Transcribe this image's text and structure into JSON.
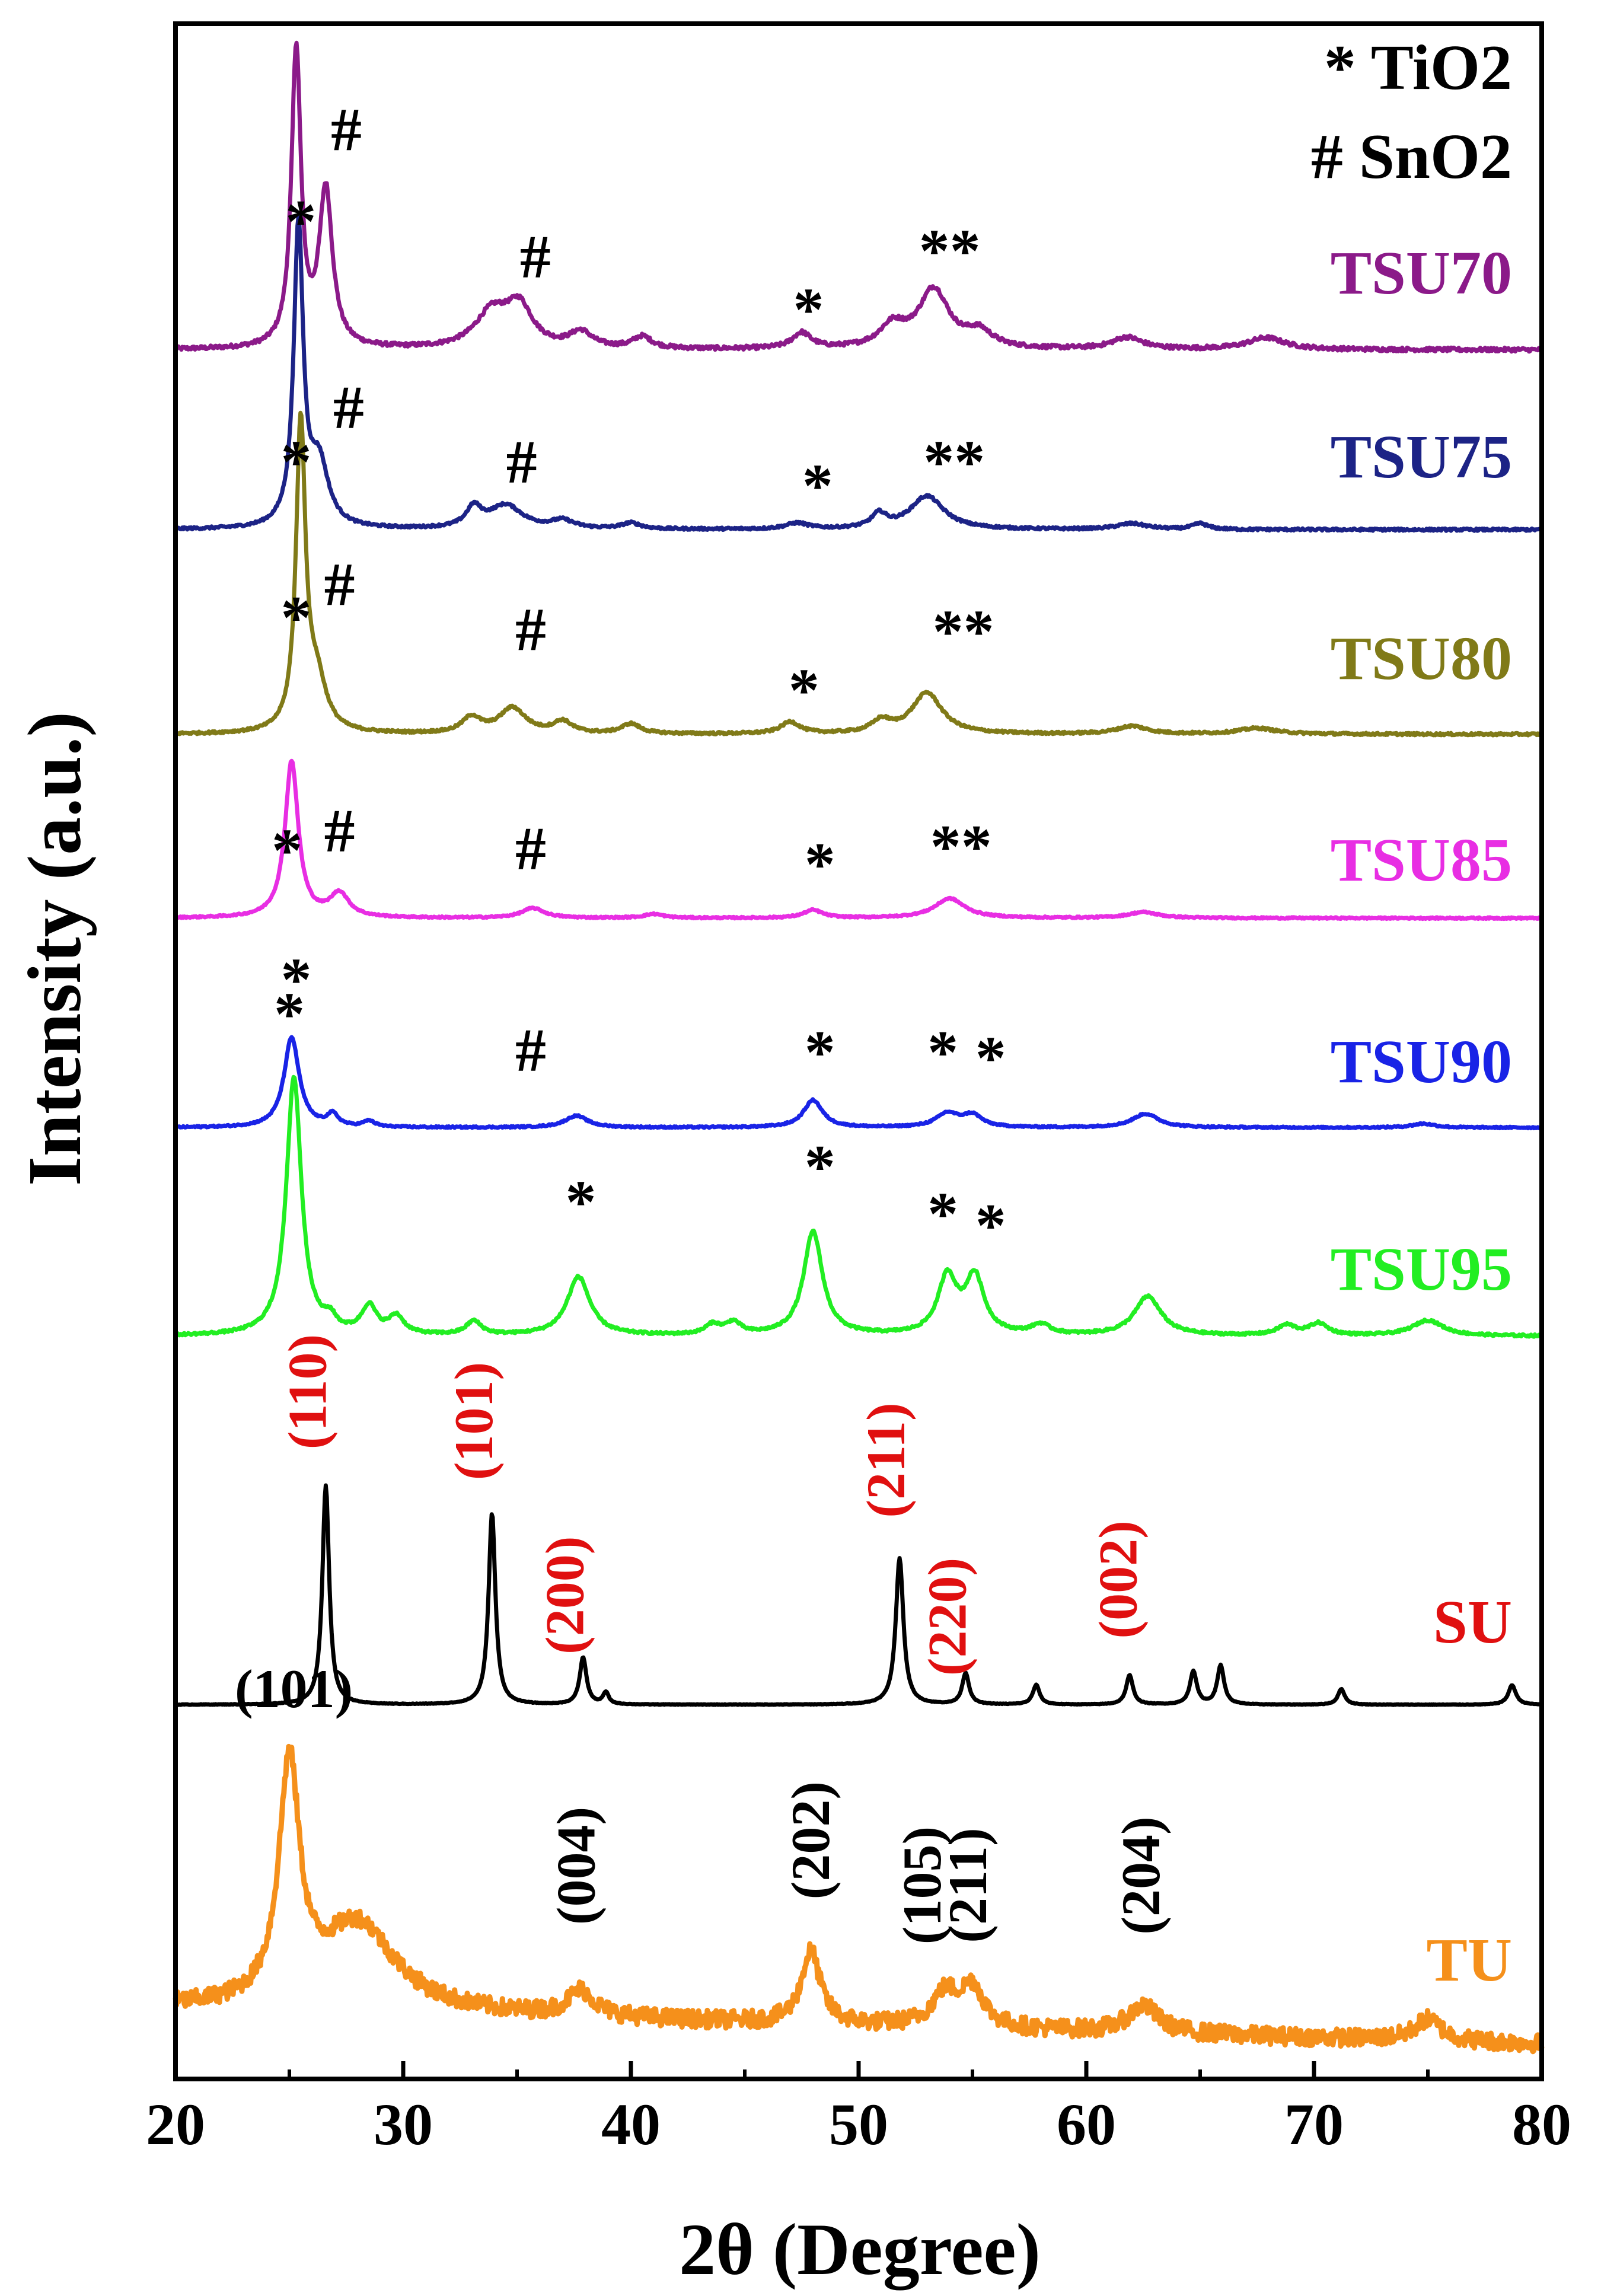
{
  "chart_data": {
    "type": "line",
    "title": "",
    "xlabel": "2θ (Degree)",
    "ylabel": "Intensity (a.u.)",
    "xlim": [
      20,
      80
    ],
    "x_ticks": [
      "20",
      "30",
      "40",
      "50",
      "60",
      "70",
      "80"
    ],
    "legend": {
      "placement": "top-right",
      "entries": [
        "* TiO2",
        "# SnO2"
      ]
    },
    "series": [
      {
        "name": "TSU70",
        "color": "#8b1a89",
        "baseline": 0.3,
        "noise": 0.1,
        "peaks": [
          {
            "x": 25.3,
            "h": 15.2,
            "w": 0.25
          },
          {
            "x": 26.6,
            "h": 8.0,
            "w": 0.35
          },
          {
            "x": 33.9,
            "h": 1.8,
            "w": 0.9
          },
          {
            "x": 35.1,
            "h": 2.0,
            "w": 0.7
          },
          {
            "x": 37.8,
            "h": 0.8,
            "w": 0.6
          },
          {
            "x": 40.5,
            "h": 0.6,
            "w": 0.5
          },
          {
            "x": 47.5,
            "h": 0.8,
            "w": 0.5
          },
          {
            "x": 51.5,
            "h": 1.1,
            "w": 0.7
          },
          {
            "x": 53.3,
            "h": 3.0,
            "w": 0.8
          },
          {
            "x": 55.3,
            "h": 0.8,
            "w": 0.7
          },
          {
            "x": 61.8,
            "h": 0.6,
            "w": 0.8
          },
          {
            "x": 67.9,
            "h": 0.6,
            "w": 1.0
          }
        ],
        "annotations": [
          {
            "text": "#",
            "x": 27.5,
            "y": 10.5
          },
          {
            "text": "*",
            "x": 25.5,
            "y": 5.8
          },
          {
            "text": "#",
            "x": 35.8,
            "y": 4.0
          },
          {
            "text": "*",
            "x": 47.8,
            "y": 1.3
          },
          {
            "text": "**",
            "x": 54.0,
            "y": 4.3
          }
        ]
      },
      {
        "name": "TSU75",
        "color": "#1c2386",
        "baseline": 0.2,
        "noise": 0.06,
        "peaks": [
          {
            "x": 25.4,
            "h": 15.2,
            "w": 0.25
          },
          {
            "x": 26.3,
            "h": 3.2,
            "w": 0.5
          },
          {
            "x": 33.1,
            "h": 1.0,
            "w": 0.4
          },
          {
            "x": 34.5,
            "h": 1.2,
            "w": 0.9
          },
          {
            "x": 37.0,
            "h": 0.4,
            "w": 0.6
          },
          {
            "x": 40.0,
            "h": 0.3,
            "w": 0.5
          },
          {
            "x": 47.3,
            "h": 0.3,
            "w": 0.6
          },
          {
            "x": 50.9,
            "h": 0.7,
            "w": 0.4
          },
          {
            "x": 53.0,
            "h": 1.7,
            "w": 0.9
          },
          {
            "x": 62.0,
            "h": 0.3,
            "w": 0.8
          },
          {
            "x": 65.0,
            "h": 0.3,
            "w": 0.4
          }
        ],
        "annotations": [
          {
            "text": "#",
            "x": 27.6,
            "y": 5.4
          },
          {
            "text": "*",
            "x": 25.3,
            "y": 2.6
          },
          {
            "text": "#",
            "x": 35.2,
            "y": 2.6
          },
          {
            "text": "*",
            "x": 48.2,
            "y": 1.4
          },
          {
            "text": "**",
            "x": 54.2,
            "y": 2.6
          }
        ]
      },
      {
        "name": "TSU80",
        "color": "#807a18",
        "baseline": 0.2,
        "noise": 0.06,
        "peaks": [
          {
            "x": 25.5,
            "h": 15.6,
            "w": 0.25
          },
          {
            "x": 26.2,
            "h": 2.5,
            "w": 0.5
          },
          {
            "x": 33.0,
            "h": 0.8,
            "w": 0.5
          },
          {
            "x": 34.8,
            "h": 1.3,
            "w": 0.7
          },
          {
            "x": 37.0,
            "h": 0.6,
            "w": 0.5
          },
          {
            "x": 40.0,
            "h": 0.5,
            "w": 0.5
          },
          {
            "x": 47.0,
            "h": 0.6,
            "w": 0.5
          },
          {
            "x": 51.0,
            "h": 0.6,
            "w": 0.5
          },
          {
            "x": 53.0,
            "h": 2.1,
            "w": 0.8
          },
          {
            "x": 62.0,
            "h": 0.4,
            "w": 0.8
          },
          {
            "x": 67.5,
            "h": 0.3,
            "w": 1.0
          }
        ],
        "annotations": [
          {
            "text": "#",
            "x": 27.2,
            "y": 6.8
          },
          {
            "text": "*",
            "x": 25.3,
            "y": 5.1
          },
          {
            "text": "#",
            "x": 35.6,
            "y": 4.5
          },
          {
            "text": "*",
            "x": 47.6,
            "y": 1.4
          },
          {
            "text": "**",
            "x": 54.6,
            "y": 4.4
          }
        ]
      },
      {
        "name": "TSU85",
        "color": "#e82ee3",
        "baseline": 0.2,
        "noise": 0.04,
        "peaks": [
          {
            "x": 25.1,
            "h": 8.0,
            "w": 0.35
          },
          {
            "x": 27.2,
            "h": 1.2,
            "w": 0.5
          },
          {
            "x": 35.7,
            "h": 0.5,
            "w": 0.6
          },
          {
            "x": 41.0,
            "h": 0.2,
            "w": 0.5
          },
          {
            "x": 48.0,
            "h": 0.4,
            "w": 0.5
          },
          {
            "x": 54.0,
            "h": 1.0,
            "w": 0.8
          },
          {
            "x": 62.5,
            "h": 0.3,
            "w": 0.8
          }
        ],
        "annotations": [
          {
            "text": "#",
            "x": 27.2,
            "y": 3.6
          },
          {
            "text": "*",
            "x": 24.9,
            "y": 2.6
          },
          {
            "text": "#",
            "x": 35.6,
            "y": 2.7
          },
          {
            "text": "*",
            "x": 48.3,
            "y": 1.9
          },
          {
            "text": "**",
            "x": 54.5,
            "y": 2.8
          }
        ]
      },
      {
        "name": "TSU90",
        "color": "#1923e6",
        "baseline": 0.1,
        "noise": 0.04,
        "peaks": [
          {
            "x": 25.1,
            "h": 4.6,
            "w": 0.4
          },
          {
            "x": 26.9,
            "h": 0.6,
            "w": 0.3
          },
          {
            "x": 28.5,
            "h": 0.3,
            "w": 0.3
          },
          {
            "x": 37.6,
            "h": 0.6,
            "w": 0.6
          },
          {
            "x": 48.0,
            "h": 1.4,
            "w": 0.5
          },
          {
            "x": 53.9,
            "h": 0.7,
            "w": 0.6
          },
          {
            "x": 55.0,
            "h": 0.6,
            "w": 0.5
          },
          {
            "x": 62.6,
            "h": 0.7,
            "w": 0.7
          },
          {
            "x": 74.8,
            "h": 0.2,
            "w": 0.6
          }
        ],
        "annotations": [
          {
            "text": "*",
            "x": 25.3,
            "y": 6.6
          },
          {
            "text": "#",
            "x": 35.6,
            "y": 3.0
          },
          {
            "text": "*",
            "x": 48.3,
            "y": 2.9
          },
          {
            "text": "*",
            "x": 53.7,
            "y": 2.9
          },
          {
            "text": "*",
            "x": 55.8,
            "y": 2.6
          }
        ]
      },
      {
        "name": "TSU95",
        "color": "#22ee22",
        "baseline": 0.2,
        "noise": 0.06,
        "peaks": [
          {
            "x": 25.2,
            "h": 13.2,
            "w": 0.4
          },
          {
            "x": 26.8,
            "h": 0.6,
            "w": 0.3
          },
          {
            "x": 28.5,
            "h": 1.4,
            "w": 0.4
          },
          {
            "x": 29.7,
            "h": 0.9,
            "w": 0.4
          },
          {
            "x": 33.1,
            "h": 0.7,
            "w": 0.4
          },
          {
            "x": 37.7,
            "h": 3.0,
            "w": 0.6
          },
          {
            "x": 43.6,
            "h": 0.5,
            "w": 0.4
          },
          {
            "x": 44.5,
            "h": 0.6,
            "w": 0.4
          },
          {
            "x": 48.0,
            "h": 5.3,
            "w": 0.5
          },
          {
            "x": 53.9,
            "h": 2.9,
            "w": 0.5
          },
          {
            "x": 55.1,
            "h": 2.9,
            "w": 0.5
          },
          {
            "x": 58.0,
            "h": 0.5,
            "w": 0.5
          },
          {
            "x": 62.7,
            "h": 2.0,
            "w": 0.7
          },
          {
            "x": 68.8,
            "h": 0.5,
            "w": 0.5
          },
          {
            "x": 70.2,
            "h": 0.6,
            "w": 0.5
          },
          {
            "x": 75.0,
            "h": 0.8,
            "w": 0.8
          }
        ],
        "annotations": [
          {
            "text": "*",
            "x": 25.0,
            "y": 15.6
          },
          {
            "text": "*",
            "x": 37.8,
            "y": 6.0
          },
          {
            "text": "*",
            "x": 48.3,
            "y": 7.8
          },
          {
            "text": "*",
            "x": 53.7,
            "y": 5.4
          },
          {
            "text": "*",
            "x": 55.8,
            "y": 4.8
          }
        ]
      },
      {
        "name": "SU",
        "color": "#000000",
        "baseline": 0.0,
        "noise": 0.015,
        "peaks": [
          {
            "x": 26.6,
            "h": 11.2,
            "w": 0.18
          },
          {
            "x": 33.9,
            "h": 9.8,
            "w": 0.18
          },
          {
            "x": 37.9,
            "h": 2.4,
            "w": 0.18
          },
          {
            "x": 38.9,
            "h": 0.6,
            "w": 0.15
          },
          {
            "x": 51.8,
            "h": 7.5,
            "w": 0.2
          },
          {
            "x": 54.7,
            "h": 1.6,
            "w": 0.18
          },
          {
            "x": 57.8,
            "h": 1.0,
            "w": 0.18
          },
          {
            "x": 61.9,
            "h": 1.5,
            "w": 0.18
          },
          {
            "x": 64.7,
            "h": 1.7,
            "w": 0.18
          },
          {
            "x": 65.9,
            "h": 2.0,
            "w": 0.18
          },
          {
            "x": 71.2,
            "h": 0.8,
            "w": 0.18
          },
          {
            "x": 78.7,
            "h": 1.0,
            "w": 0.2
          }
        ],
        "annotations": [
          {
            "text": "(110)",
            "x": 26.6,
            "y": 16.0,
            "rotate": true,
            "color": "#e01010"
          },
          {
            "text": "(101)",
            "x": 33.9,
            "y": 14.5,
            "rotate": true,
            "color": "#e01010"
          },
          {
            "text": "(200)",
            "x": 37.9,
            "y": 5.6,
            "rotate": true,
            "color": "#e01010"
          },
          {
            "text": "(211)",
            "x": 52.0,
            "y": 12.5,
            "rotate": true,
            "color": "#e01010"
          },
          {
            "text": "(220)",
            "x": 54.7,
            "y": 4.5,
            "rotate": true,
            "color": "#e01010"
          },
          {
            "text": "(002)",
            "x": 62.2,
            "y": 6.4,
            "rotate": true,
            "color": "#e01010"
          }
        ]
      },
      {
        "name": "TU",
        "color": "#f5901b",
        "baseline": 1.8,
        "noise": 0.45,
        "peaks": [
          {
            "x": 25.0,
            "h": 12.0,
            "w": 0.55
          },
          {
            "x": 28.0,
            "h": 4.5,
            "w": 2.0
          },
          {
            "x": 37.8,
            "h": 1.3,
            "w": 0.7
          },
          {
            "x": 47.9,
            "h": 3.7,
            "w": 0.5
          },
          {
            "x": 53.8,
            "h": 1.7,
            "w": 0.7
          },
          {
            "x": 55.0,
            "h": 2.0,
            "w": 0.6
          },
          {
            "x": 62.5,
            "h": 1.4,
            "w": 0.8
          },
          {
            "x": 75.0,
            "h": 1.1,
            "w": 0.7
          }
        ],
        "annotations": [
          {
            "text": "(101)",
            "x": 25.2,
            "y": 17.6,
            "color": "#000000"
          },
          {
            "text": "(004)",
            "x": 38.4,
            "y": 9.5,
            "rotate": true,
            "color": "#000000"
          },
          {
            "text": "(202)",
            "x": 48.7,
            "y": 10.8,
            "rotate": true,
            "color": "#000000"
          },
          {
            "text": "(105)",
            "x": 53.6,
            "y": 8.5,
            "rotate": true,
            "color": "#000000"
          },
          {
            "text": "(211)",
            "x": 55.6,
            "y": 8.5,
            "rotate": true,
            "color": "#000000"
          },
          {
            "text": "(204)",
            "x": 63.2,
            "y": 9.0,
            "rotate": true,
            "color": "#000000"
          }
        ]
      }
    ]
  }
}
